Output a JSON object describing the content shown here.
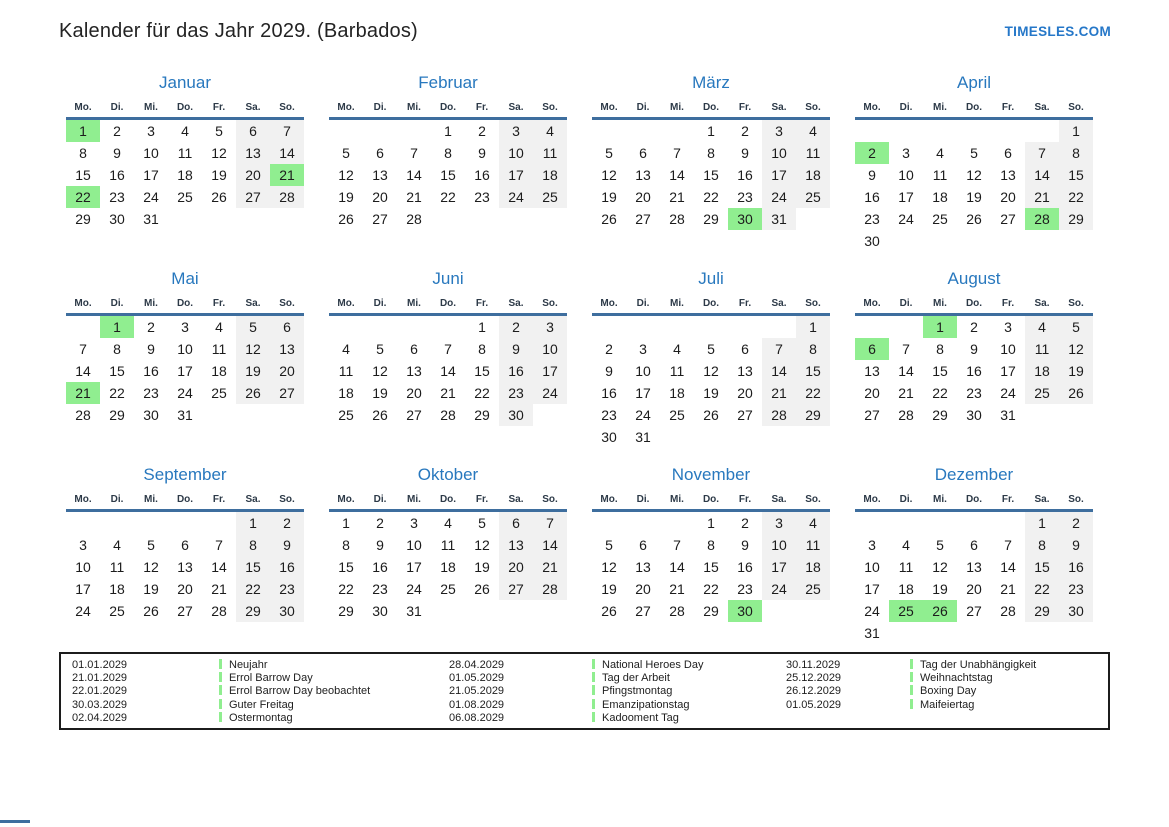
{
  "header": {
    "title": "Kalender für das Jahr 2029. (Barbados)",
    "site_link": "TIMESLES.COM"
  },
  "day_headers": [
    "Mo.",
    "Di.",
    "Mi.",
    "Do.",
    "Fr.",
    "Sa.",
    "So."
  ],
  "months": [
    {
      "name": "Januar",
      "first_dow": 0,
      "days": 31,
      "holidays": [
        1,
        21,
        22
      ]
    },
    {
      "name": "Februar",
      "first_dow": 3,
      "days": 28,
      "holidays": []
    },
    {
      "name": "März",
      "first_dow": 3,
      "days": 31,
      "holidays": [
        30
      ]
    },
    {
      "name": "April",
      "first_dow": 6,
      "days": 30,
      "holidays": [
        2,
        28
      ]
    },
    {
      "name": "Mai",
      "first_dow": 1,
      "days": 31,
      "holidays": [
        1,
        21
      ]
    },
    {
      "name": "Juni",
      "first_dow": 4,
      "days": 30,
      "holidays": []
    },
    {
      "name": "Juli",
      "first_dow": 6,
      "days": 31,
      "holidays": []
    },
    {
      "name": "August",
      "first_dow": 2,
      "days": 31,
      "holidays": [
        1,
        6
      ]
    },
    {
      "name": "September",
      "first_dow": 5,
      "days": 30,
      "holidays": []
    },
    {
      "name": "Oktober",
      "first_dow": 0,
      "days": 31,
      "holidays": []
    },
    {
      "name": "November",
      "first_dow": 3,
      "days": 30,
      "holidays": [
        30
      ]
    },
    {
      "name": "Dezember",
      "first_dow": 5,
      "days": 31,
      "holidays": [
        25,
        26
      ]
    }
  ],
  "legend": {
    "groups": [
      [
        {
          "date": "01.01.2029",
          "name": "Neujahr"
        },
        {
          "date": "21.01.2029",
          "name": "Errol Barrow Day"
        },
        {
          "date": "22.01.2029",
          "name": "Errol Barrow Day beobachtet"
        },
        {
          "date": "30.03.2029",
          "name": "Guter Freitag"
        },
        {
          "date": "02.04.2029",
          "name": "Ostermontag"
        }
      ],
      [
        {
          "date": "28.04.2029",
          "name": "National Heroes Day"
        },
        {
          "date": "01.05.2029",
          "name": "Tag der Arbeit"
        },
        {
          "date": "21.05.2029",
          "name": "Pfingstmontag"
        },
        {
          "date": "01.08.2029",
          "name": "Emanzipationstag"
        },
        {
          "date": "06.08.2029",
          "name": "Kadooment Tag"
        }
      ],
      [
        {
          "date": "30.11.2029",
          "name": "Tag der Unabhängigkeit"
        },
        {
          "date": "25.12.2029",
          "name": "Weihnachtstag"
        },
        {
          "date": "26.12.2029",
          "name": "Boxing Day"
        },
        {
          "date": "01.05.2029",
          "name": "Maifeiertag"
        }
      ]
    ]
  },
  "colors": {
    "accent_blue": "#2878be",
    "link_blue": "#2577c8",
    "header_line_blue": "#3e6e9e",
    "holiday_green": "#90ee90",
    "weekend_gray": "#f1f1f1"
  }
}
